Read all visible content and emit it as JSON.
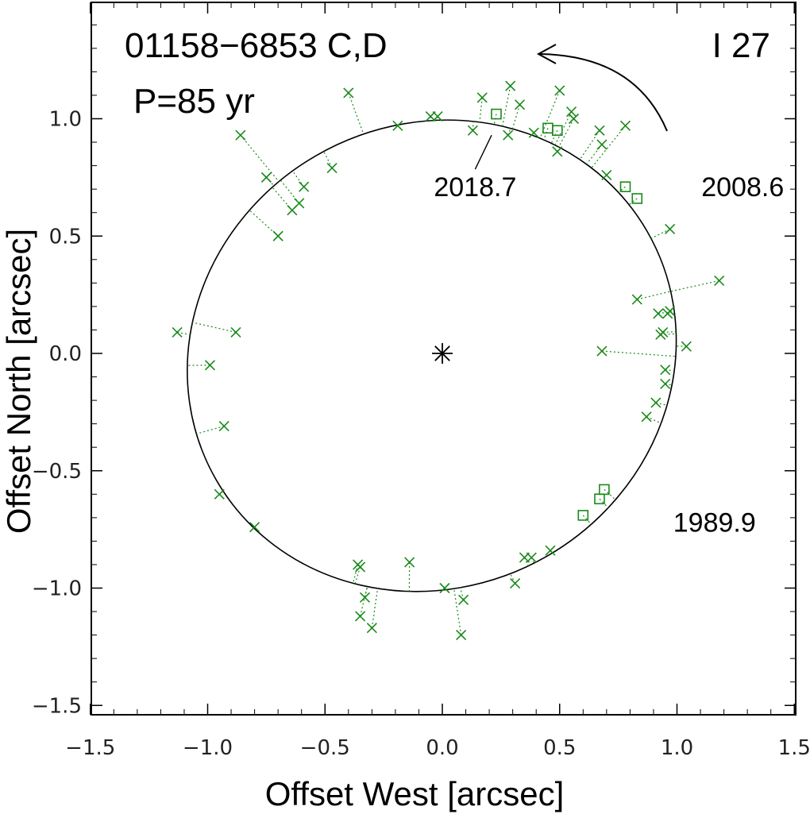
{
  "chart_data": {
    "type": "scatter",
    "title": "01158−6853 C,D",
    "subtitle": "P=85 yr",
    "label_right": "I 27",
    "xlabel": "Offset West [arcsec]",
    "ylabel": "Offset North [arcsec]",
    "xlim": [
      -1.5,
      1.5
    ],
    "ylim": [
      -1.5,
      1.5
    ],
    "x_ticks": [
      -1.5,
      -1.0,
      -0.5,
      0.0,
      0.5,
      1.0,
      1.5
    ],
    "y_ticks": [
      -1.5,
      -1.0,
      -0.5,
      0.0,
      0.5,
      1.0
    ],
    "x_tick_labels": [
      "−1.5",
      "−1.0",
      "−0.5",
      "0.0",
      "0.5",
      "1.0",
      "1.5"
    ],
    "y_tick_labels": [
      "−1.5",
      "−1.0",
      "−0.5",
      "0.0",
      "0.5",
      "1.0"
    ],
    "grid": false,
    "primary": {
      "x": 0.0,
      "y": 0.0
    },
    "orbit_ellipse": {
      "center": [
        -0.045,
        -0.01
      ],
      "semi_axes": [
        1.06,
        0.985
      ],
      "rotation_deg": -30
    },
    "colors": {
      "measurements": "#1a8a1a",
      "orbit": "#000000",
      "axes": "#000000"
    },
    "series": [
      {
        "marker": "cross",
        "points": [
          {
            "x": -1.13,
            "y": 0.09
          },
          {
            "x": -0.88,
            "y": 0.09
          },
          {
            "x": -0.99,
            "y": -0.05
          },
          {
            "x": -0.93,
            "y": -0.31
          },
          {
            "x": -0.95,
            "y": -0.6
          },
          {
            "x": -0.8,
            "y": -0.74
          },
          {
            "x": -0.86,
            "y": 0.93
          },
          {
            "x": -0.75,
            "y": 0.75
          },
          {
            "x": -0.7,
            "y": 0.5
          },
          {
            "x": -0.64,
            "y": 0.61
          },
          {
            "x": -0.61,
            "y": 0.64
          },
          {
            "x": -0.59,
            "y": 0.71
          },
          {
            "x": -0.47,
            "y": 0.79
          },
          {
            "x": -0.4,
            "y": 1.11
          },
          {
            "x": -0.19,
            "y": 0.97
          },
          {
            "x": -0.05,
            "y": 1.01
          },
          {
            "x": -0.02,
            "y": 1.01
          },
          {
            "x": 0.13,
            "y": 0.95
          },
          {
            "x": 0.17,
            "y": 1.09
          },
          {
            "x": 0.28,
            "y": 0.93
          },
          {
            "x": 0.29,
            "y": 1.14
          },
          {
            "x": 0.33,
            "y": 1.06
          },
          {
            "x": 0.39,
            "y": 0.94
          },
          {
            "x": 0.49,
            "y": 0.86
          },
          {
            "x": 0.5,
            "y": 1.12
          },
          {
            "x": 0.55,
            "y": 1.03
          },
          {
            "x": 0.56,
            "y": 1.0
          },
          {
            "x": 0.67,
            "y": 0.95
          },
          {
            "x": 0.68,
            "y": 0.89
          },
          {
            "x": 0.7,
            "y": 0.76
          },
          {
            "x": 0.78,
            "y": 0.97
          },
          {
            "x": 0.97,
            "y": 0.53
          },
          {
            "x": 1.18,
            "y": 0.31
          },
          {
            "x": 0.83,
            "y": 0.23
          },
          {
            "x": 0.92,
            "y": 0.17
          },
          {
            "x": 0.97,
            "y": 0.18
          },
          {
            "x": 0.96,
            "y": 0.17
          },
          {
            "x": 0.94,
            "y": 0.09
          },
          {
            "x": 0.93,
            "y": 0.08
          },
          {
            "x": 1.04,
            "y": 0.03
          },
          {
            "x": 0.68,
            "y": 0.01
          },
          {
            "x": 0.95,
            "y": -0.07
          },
          {
            "x": 0.95,
            "y": -0.13
          },
          {
            "x": 0.91,
            "y": -0.21
          },
          {
            "x": 0.87,
            "y": -0.27
          },
          {
            "x": 0.46,
            "y": -0.84
          },
          {
            "x": 0.38,
            "y": -0.87
          },
          {
            "x": 0.35,
            "y": -0.87
          },
          {
            "x": 0.31,
            "y": -0.98
          },
          {
            "x": 0.01,
            "y": -1.0
          },
          {
            "x": 0.09,
            "y": -1.05
          },
          {
            "x": 0.08,
            "y": -1.2
          },
          {
            "x": -0.14,
            "y": -0.89
          },
          {
            "x": -0.35,
            "y": -0.91
          },
          {
            "x": -0.36,
            "y": -0.9
          },
          {
            "x": -0.33,
            "y": -1.04
          },
          {
            "x": -0.35,
            "y": -1.12
          },
          {
            "x": -0.3,
            "y": -1.17
          }
        ]
      },
      {
        "marker": "square",
        "points": [
          {
            "x": 0.23,
            "y": 1.02
          },
          {
            "x": 0.45,
            "y": 0.96
          },
          {
            "x": 0.49,
            "y": 0.95
          },
          {
            "x": 0.78,
            "y": 0.71
          },
          {
            "x": 0.83,
            "y": 0.66
          },
          {
            "x": 0.69,
            "y": -0.58
          },
          {
            "x": 0.67,
            "y": -0.62
          },
          {
            "x": 0.6,
            "y": -0.69
          }
        ]
      }
    ],
    "annotations": [
      {
        "text": "2018.7",
        "x": 0.14,
        "y": 0.67,
        "target": {
          "x": 0.21,
          "y": 0.93
        }
      },
      {
        "text": "2008.6",
        "x": 1.28,
        "y": 0.67
      },
      {
        "text": "1989.9",
        "x": 1.16,
        "y": -0.76
      }
    ],
    "motion_arrow": "counterclockwise, near top-right"
  }
}
